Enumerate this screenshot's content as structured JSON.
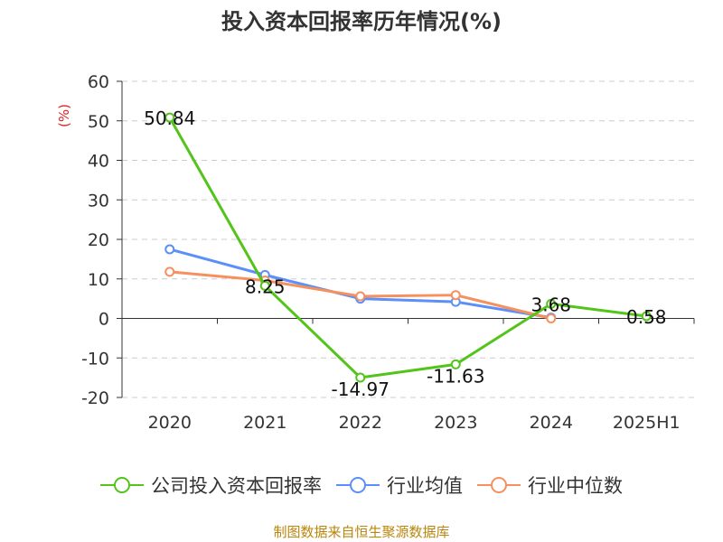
{
  "page": {
    "title": "投入资本回报率历年情况(%)",
    "source": "制图数据来自恒生聚源数据库"
  },
  "chart_data": {
    "type": "line",
    "title": "投入资本回报率历年情况(%)",
    "ylabel": "(%)",
    "xlabel": "",
    "categories": [
      "2020",
      "2021",
      "2022",
      "2023",
      "2024",
      "2025H1"
    ],
    "ylim": [
      -20,
      60
    ],
    "yticks": [
      60,
      50,
      40,
      30,
      20,
      10,
      0,
      -10,
      -20
    ],
    "grid": true,
    "legend_position": "bottom",
    "series": [
      {
        "name": "公司投入资本回报率",
        "color": "#52c41a",
        "values": [
          50.84,
          8.25,
          -14.97,
          -11.63,
          3.68,
          0.58
        ],
        "labels": [
          "50.84",
          "8.25",
          "-14.97",
          "-11.63",
          "3.68",
          "0.58"
        ]
      },
      {
        "name": "行业均值",
        "color": "#5b8ff9",
        "values": [
          17.5,
          11.0,
          5.0,
          4.2,
          0.2,
          null
        ]
      },
      {
        "name": "行业中位数",
        "color": "#f6905e",
        "values": [
          11.8,
          9.6,
          5.6,
          5.9,
          0.0,
          null
        ]
      }
    ]
  }
}
